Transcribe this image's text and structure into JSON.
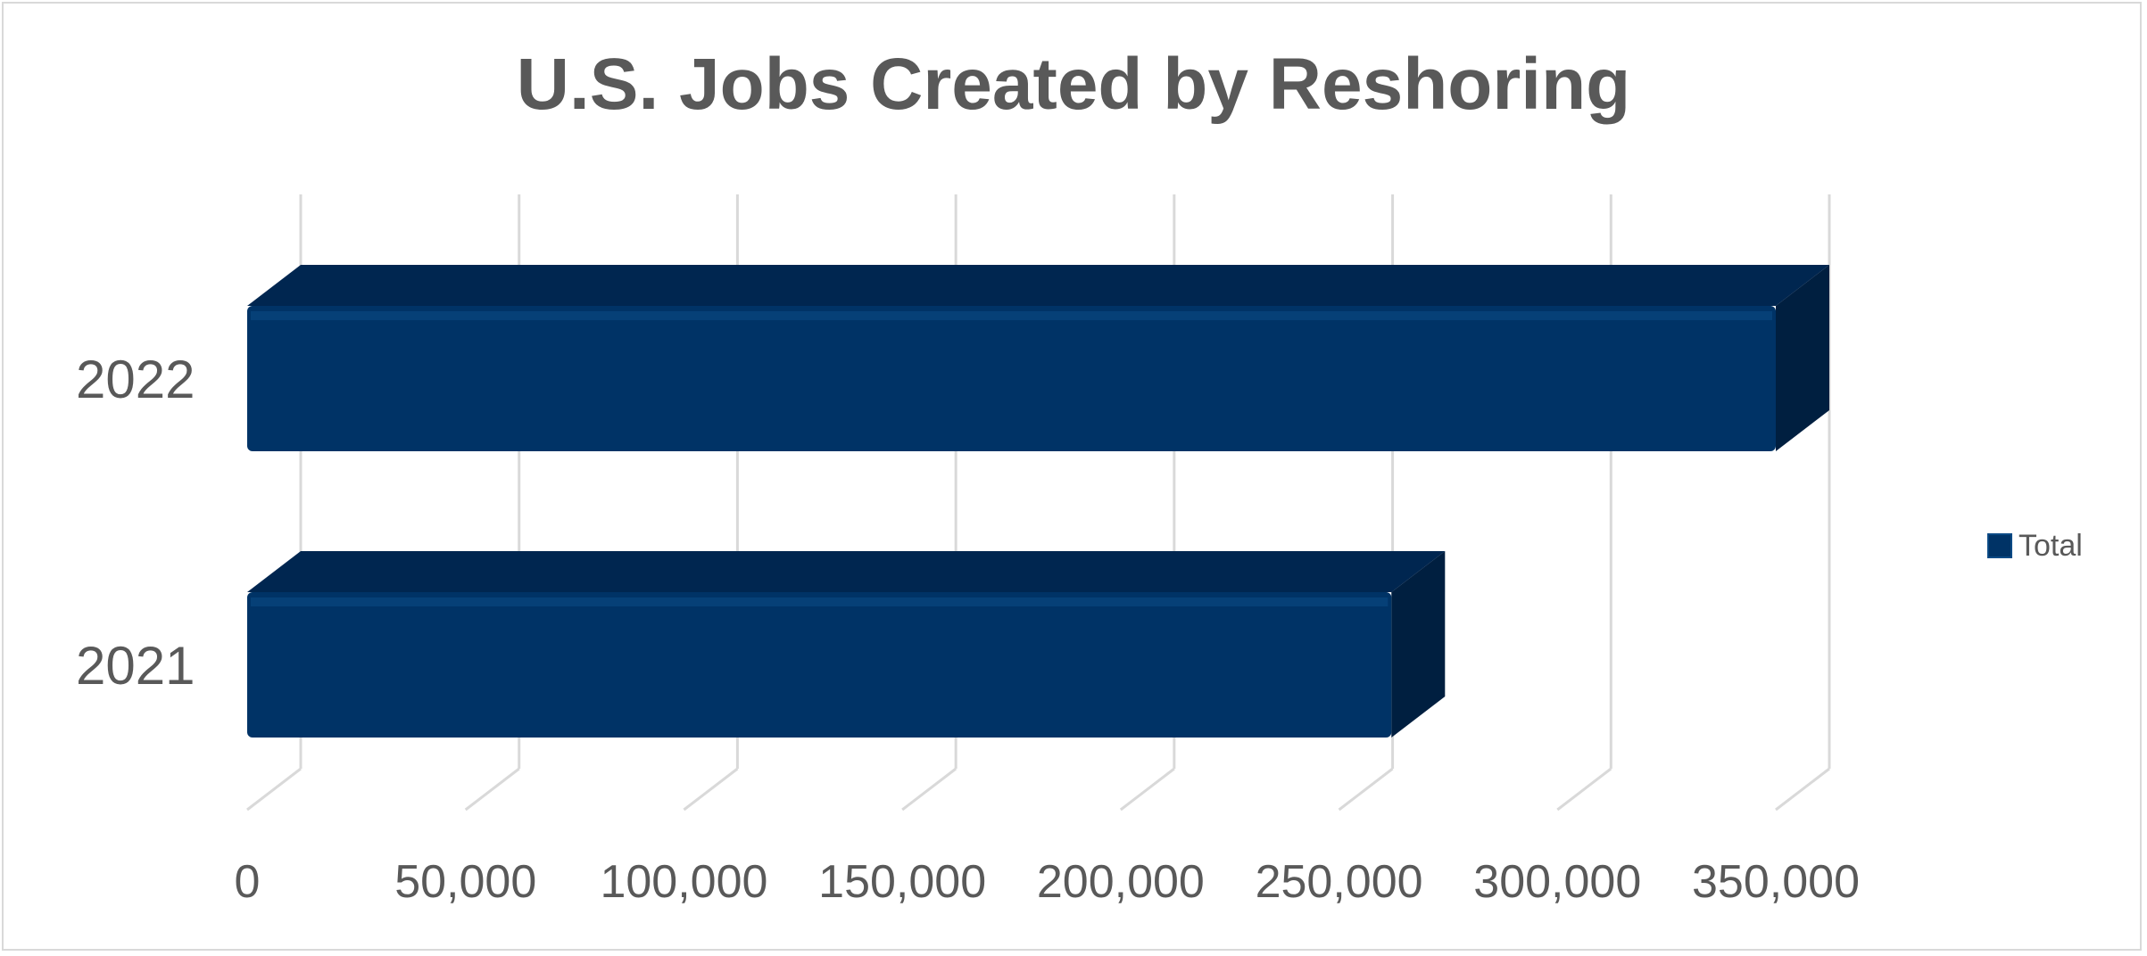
{
  "chart_data": {
    "type": "bar",
    "orientation": "horizontal",
    "title": "U.S. Jobs Created by Reshoring",
    "categories": [
      "2022",
      "2021"
    ],
    "series": [
      {
        "name": "Total",
        "values": [
          350000,
          262000
        ],
        "color": "#003366"
      }
    ],
    "xlim": [
      0,
      350000
    ],
    "x_ticks": [
      0,
      50000,
      100000,
      150000,
      200000,
      250000,
      300000,
      350000
    ],
    "x_tick_labels": [
      "0",
      "50,000",
      "100,000",
      "150,000",
      "200,000",
      "250,000",
      "300,000",
      "350,000"
    ],
    "grid": true,
    "legend_position": "right",
    "colors": {
      "bar_front": "#003366",
      "bar_top": "#002650",
      "bar_side": "#001f40",
      "grid": "#d9d9d9",
      "text": "#595959"
    }
  }
}
